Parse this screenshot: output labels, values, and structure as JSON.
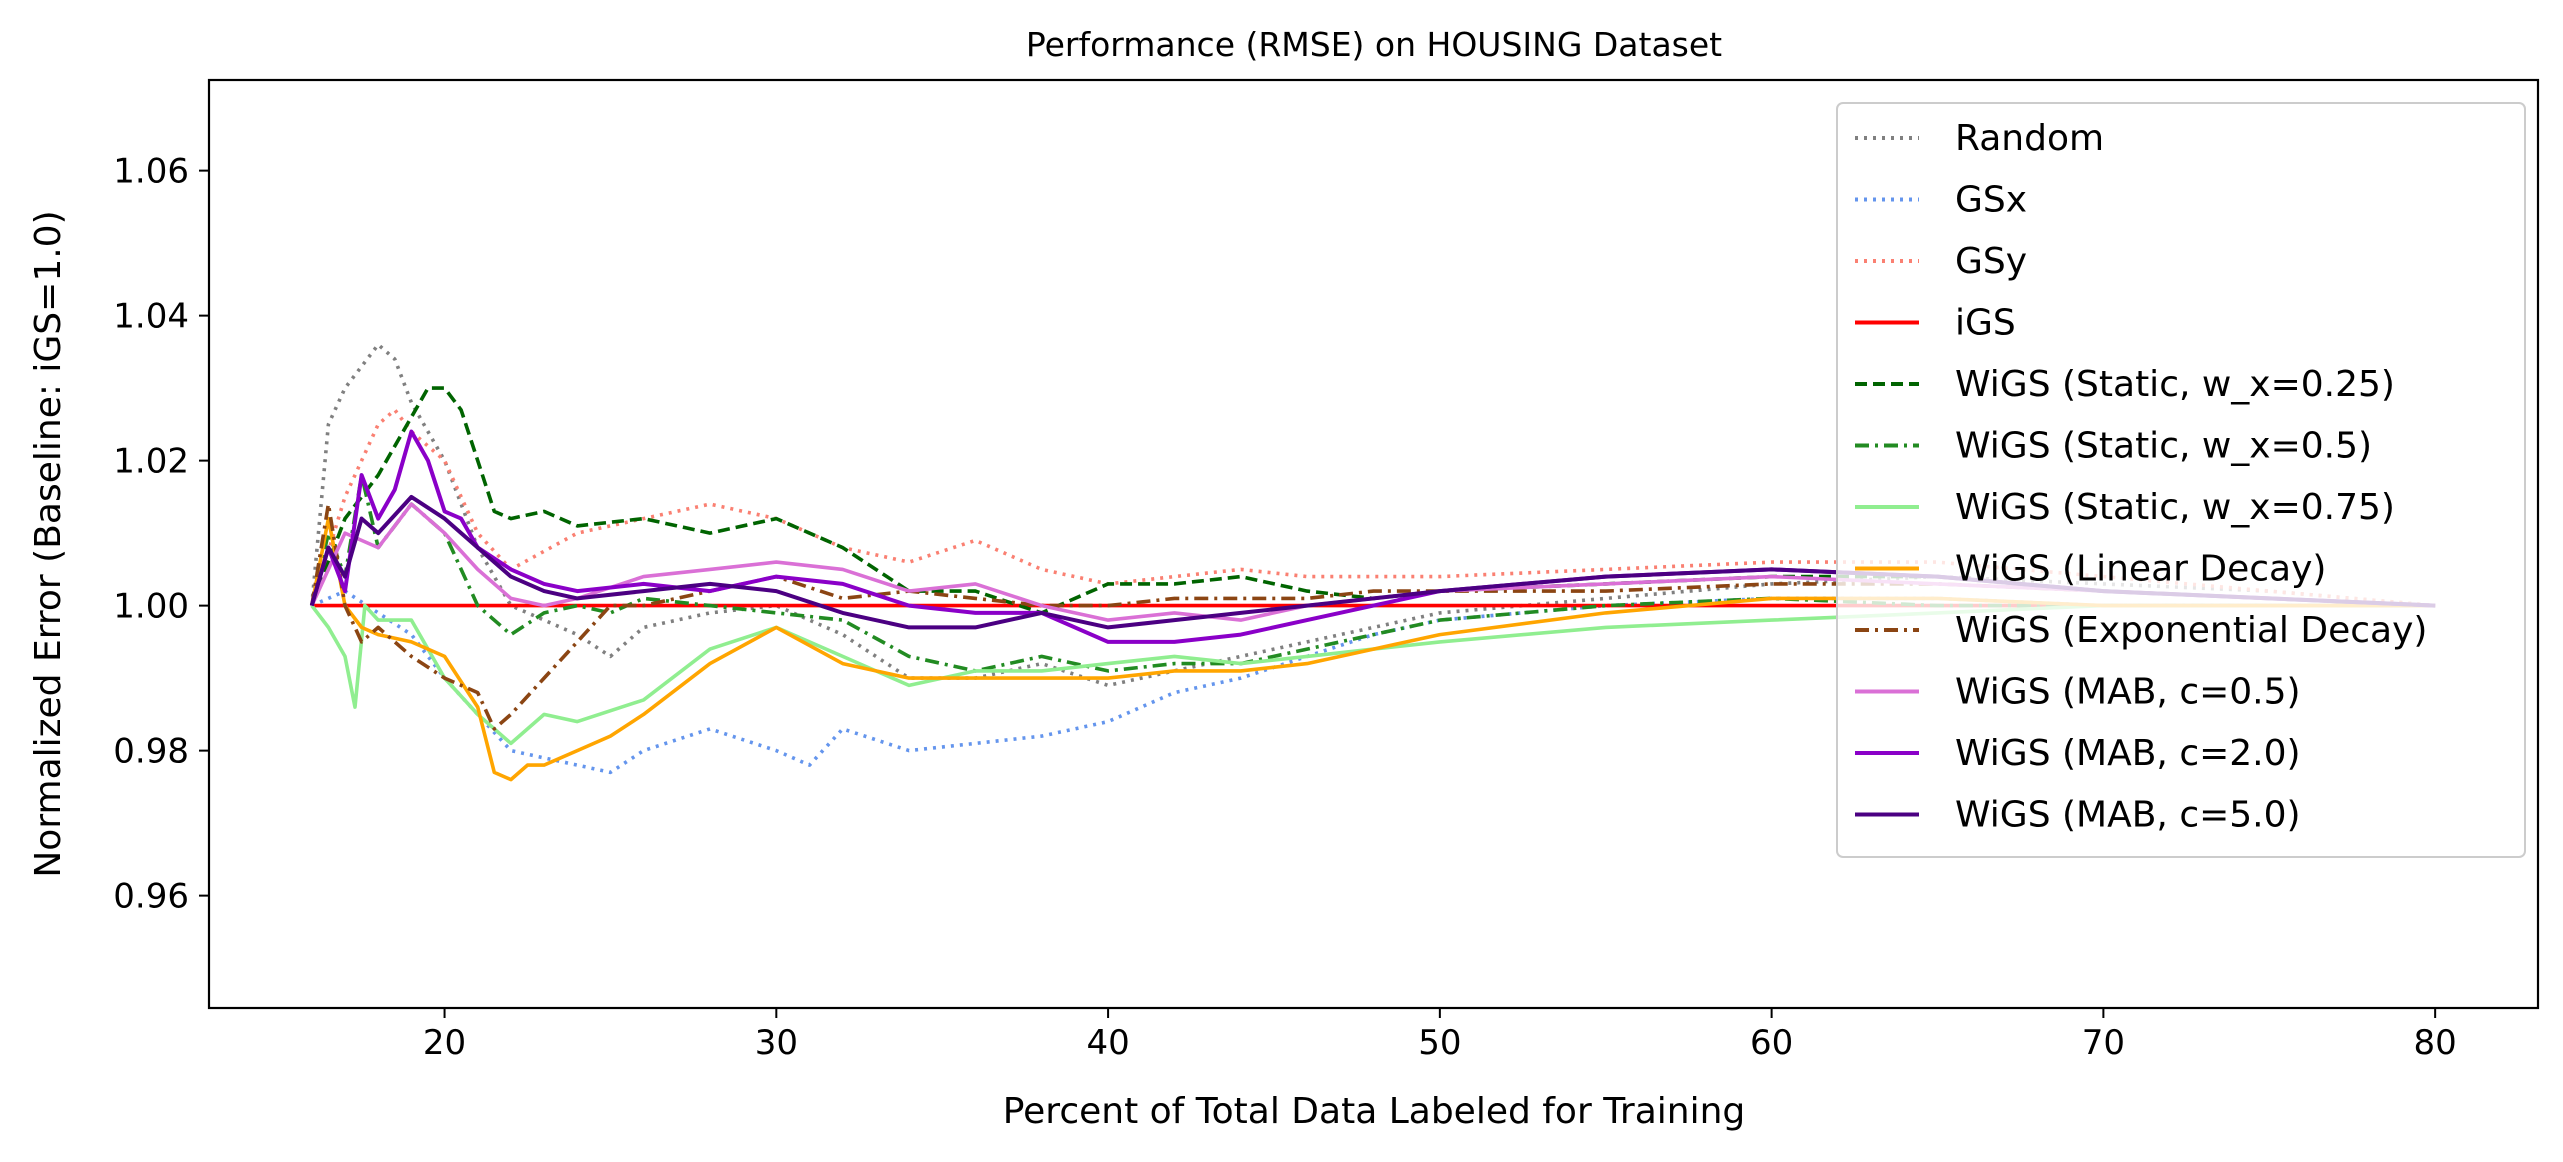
{
  "chart_data": {
    "type": "line",
    "title": "Performance (RMSE) on HOUSING Dataset",
    "xlabel": "Percent of Total Data Labeled for Training",
    "ylabel": "Normalized Error (Baseline: iGS=1.0)",
    "xlim": [
      12.9,
      83.1
    ],
    "ylim": [
      0.9445,
      1.0725
    ],
    "xticks": [
      20,
      30,
      40,
      50,
      60,
      70,
      80
    ],
    "xtick_labels": [
      "20",
      "30",
      "40",
      "50",
      "60",
      "70",
      "80"
    ],
    "yticks": [
      0.96,
      0.98,
      1.0,
      1.02,
      1.04,
      1.06
    ],
    "ytick_labels": [
      "0.96",
      "0.98",
      "1.00",
      "1.02",
      "1.04",
      "1.06"
    ],
    "grid": false,
    "legend_position": "upper-right",
    "series": [
      {
        "name": "Random",
        "color": "#808080",
        "style": "dotted",
        "x": [
          16,
          16.5,
          17,
          17.5,
          18,
          18.5,
          19,
          20,
          21,
          22,
          23,
          24,
          25,
          26,
          28,
          30,
          32,
          34,
          36,
          38,
          40,
          42,
          44,
          46,
          48,
          50,
          55,
          60,
          65,
          70,
          75,
          80
        ],
        "y": [
          1.0,
          1.025,
          1.03,
          1.033,
          1.036,
          1.034,
          1.028,
          1.02,
          1.008,
          1.0,
          0.998,
          0.996,
          0.993,
          0.997,
          0.999,
          1.0,
          0.996,
          0.99,
          0.99,
          0.992,
          0.989,
          0.991,
          0.993,
          0.995,
          0.997,
          0.999,
          1.001,
          1.003,
          1.004,
          1.003,
          1.002,
          1.0
        ]
      },
      {
        "name": "GSx",
        "color": "#6495ED",
        "style": "dotted",
        "x": [
          16,
          17,
          18,
          19,
          20,
          21,
          22,
          23,
          24,
          25,
          26,
          28,
          30,
          31,
          32,
          34,
          36,
          38,
          40,
          42,
          44,
          46,
          48,
          50,
          55,
          60,
          65,
          70,
          75,
          80
        ],
        "y": [
          1.0,
          1.002,
          0.999,
          0.996,
          0.99,
          0.985,
          0.98,
          0.979,
          0.978,
          0.977,
          0.98,
          0.983,
          0.98,
          0.978,
          0.983,
          0.98,
          0.981,
          0.982,
          0.984,
          0.988,
          0.99,
          0.993,
          0.996,
          0.998,
          1.0,
          1.001,
          1.001,
          1.0,
          1.0,
          1.0
        ]
      },
      {
        "name": "GSy",
        "color": "#FA8072",
        "style": "dotted",
        "x": [
          16,
          17,
          18,
          18.5,
          19,
          20,
          21,
          22,
          24,
          26,
          28,
          30,
          32,
          34,
          36,
          38,
          40,
          42,
          44,
          46,
          48,
          50,
          55,
          60,
          65,
          70,
          75,
          80
        ],
        "y": [
          1.0,
          1.015,
          1.025,
          1.027,
          1.024,
          1.02,
          1.01,
          1.005,
          1.01,
          1.012,
          1.014,
          1.012,
          1.008,
          1.006,
          1.009,
          1.005,
          1.003,
          1.004,
          1.005,
          1.004,
          1.004,
          1.004,
          1.005,
          1.006,
          1.006,
          1.004,
          1.002,
          1.0
        ]
      },
      {
        "name": "iGS",
        "color": "#FF0000",
        "style": "solid",
        "x": [
          16,
          80
        ],
        "y": [
          1.0,
          1.0
        ]
      },
      {
        "name": "WiGS (Static, w_x=0.25)",
        "color": "#006400",
        "style": "dashed",
        "x": [
          16,
          17,
          18,
          19,
          19.5,
          20,
          20.5,
          21,
          21.5,
          22,
          23,
          24,
          26,
          28,
          30,
          32,
          34,
          36,
          38,
          40,
          42,
          44,
          46,
          48,
          50,
          55,
          60,
          65,
          70,
          75,
          80
        ],
        "y": [
          1.0,
          1.012,
          1.018,
          1.026,
          1.03,
          1.03,
          1.027,
          1.02,
          1.013,
          1.012,
          1.013,
          1.011,
          1.012,
          1.01,
          1.012,
          1.008,
          1.002,
          1.002,
          0.999,
          1.003,
          1.003,
          1.004,
          1.002,
          1.001,
          1.002,
          1.003,
          1.004,
          1.004,
          1.002,
          1.001,
          1.0
        ]
      },
      {
        "name": "WiGS (Static, w_x=0.5)",
        "color": "#228B22",
        "style": "dashdot",
        "x": [
          16,
          16.5,
          17,
          17.5,
          18,
          19,
          20,
          21,
          22,
          23,
          24,
          25,
          26,
          28,
          30,
          32,
          34,
          36,
          38,
          40,
          42,
          44,
          46,
          48,
          50,
          55,
          60,
          65,
          70,
          75,
          80
        ],
        "y": [
          1.0,
          1.01,
          1.004,
          1.018,
          1.008,
          1.014,
          1.01,
          1.0,
          0.996,
          0.999,
          1.0,
          0.999,
          1.001,
          1.0,
          0.999,
          0.998,
          0.993,
          0.991,
          0.993,
          0.991,
          0.992,
          0.992,
          0.994,
          0.996,
          0.998,
          1.0,
          1.001,
          1.0,
          1.0,
          1.0,
          1.0
        ]
      },
      {
        "name": "WiGS (Static, w_x=0.75)",
        "color": "#90EE90",
        "style": "solid",
        "x": [
          16,
          16.5,
          17,
          17.3,
          17.6,
          18,
          19,
          20,
          21,
          22,
          23,
          24,
          26,
          28,
          30,
          32,
          34,
          36,
          38,
          40,
          42,
          44,
          46,
          48,
          50,
          55,
          60,
          65,
          70,
          75,
          80
        ],
        "y": [
          1.0,
          0.997,
          0.993,
          0.986,
          1.0,
          0.998,
          0.998,
          0.99,
          0.985,
          0.981,
          0.985,
          0.984,
          0.987,
          0.994,
          0.997,
          0.993,
          0.989,
          0.991,
          0.991,
          0.992,
          0.993,
          0.992,
          0.993,
          0.994,
          0.995,
          0.997,
          0.998,
          0.999,
          1.0,
          1.0,
          1.0
        ]
      },
      {
        "name": "WiGS (Linear Decay)",
        "color": "#FFA500",
        "style": "solid",
        "x": [
          16,
          16.5,
          17,
          17.5,
          18,
          19,
          20,
          21,
          21.5,
          22,
          22.5,
          23,
          24,
          25,
          26,
          28,
          30,
          32,
          34,
          36,
          38,
          40,
          42,
          44,
          46,
          48,
          50,
          55,
          60,
          65,
          70,
          75,
          80
        ],
        "y": [
          1.0,
          1.012,
          1.0,
          0.997,
          0.996,
          0.995,
          0.993,
          0.986,
          0.977,
          0.976,
          0.978,
          0.978,
          0.98,
          0.982,
          0.985,
          0.992,
          0.997,
          0.992,
          0.99,
          0.99,
          0.99,
          0.99,
          0.991,
          0.991,
          0.992,
          0.994,
          0.996,
          0.999,
          1.001,
          1.001,
          1.0,
          1.0,
          1.0
        ]
      },
      {
        "name": "WiGS (Exponential Decay)",
        "color": "#8B4513",
        "style": "dashdot",
        "x": [
          16,
          16.5,
          17,
          17.5,
          18,
          19,
          20,
          21,
          21.5,
          22,
          23,
          24,
          25,
          26,
          28,
          30,
          32,
          34,
          36,
          38,
          40,
          42,
          44,
          46,
          48,
          50,
          55,
          60,
          65,
          70,
          75,
          80
        ],
        "y": [
          1.0,
          1.014,
          1.0,
          0.995,
          0.997,
          0.993,
          0.99,
          0.988,
          0.983,
          0.985,
          0.99,
          0.995,
          1.0,
          1.0,
          1.002,
          1.004,
          1.001,
          1.002,
          1.001,
          1.0,
          1.0,
          1.001,
          1.001,
          1.001,
          1.002,
          1.002,
          1.002,
          1.003,
          1.003,
          1.002,
          1.001,
          1.0
        ]
      },
      {
        "name": "WiGS (MAB, c=0.5)",
        "color": "#DA70D6",
        "style": "solid",
        "x": [
          16,
          17,
          18,
          19,
          20,
          21,
          22,
          23,
          24,
          26,
          28,
          30,
          32,
          34,
          36,
          38,
          40,
          42,
          44,
          46,
          48,
          50,
          55,
          60,
          65,
          70,
          75,
          80
        ],
        "y": [
          1.0,
          1.01,
          1.008,
          1.014,
          1.01,
          1.005,
          1.001,
          1.0,
          1.001,
          1.004,
          1.005,
          1.006,
          1.005,
          1.002,
          1.003,
          1.0,
          0.998,
          0.999,
          0.998,
          1.0,
          1.001,
          1.002,
          1.003,
          1.004,
          1.003,
          1.002,
          1.001,
          1.0
        ]
      },
      {
        "name": "WiGS (MAB, c=2.0)",
        "color": "#8A00C8",
        "style": "solid",
        "x": [
          16,
          16.5,
          17,
          17.5,
          18,
          18.5,
          19,
          19.5,
          20,
          20.5,
          21,
          22,
          23,
          24,
          26,
          28,
          30,
          32,
          34,
          36,
          38,
          40,
          42,
          44,
          46,
          48,
          50,
          55,
          60,
          65,
          70,
          75,
          80
        ],
        "y": [
          1.0,
          1.008,
          1.002,
          1.018,
          1.012,
          1.016,
          1.024,
          1.02,
          1.013,
          1.012,
          1.008,
          1.005,
          1.003,
          1.002,
          1.003,
          1.002,
          1.004,
          1.003,
          1.0,
          0.999,
          0.999,
          0.995,
          0.995,
          0.996,
          0.998,
          1.0,
          1.002,
          1.004,
          1.005,
          1.004,
          1.002,
          1.001,
          1.0
        ]
      },
      {
        "name": "WiGS (MAB, c=5.0)",
        "color": "#4B0082",
        "style": "solid",
        "x": [
          16,
          16.5,
          17,
          17.5,
          18,
          19,
          20,
          21,
          22,
          23,
          24,
          26,
          28,
          30,
          32,
          34,
          36,
          38,
          40,
          42,
          44,
          46,
          48,
          50,
          55,
          60,
          65,
          70,
          75,
          80
        ],
        "y": [
          1.0,
          1.008,
          1.004,
          1.012,
          1.01,
          1.015,
          1.012,
          1.008,
          1.004,
          1.002,
          1.001,
          1.002,
          1.003,
          1.002,
          0.999,
          0.997,
          0.997,
          0.999,
          0.997,
          0.998,
          0.999,
          1.0,
          1.001,
          1.002,
          1.004,
          1.005,
          1.004,
          1.002,
          1.001,
          1.0
        ]
      }
    ]
  }
}
